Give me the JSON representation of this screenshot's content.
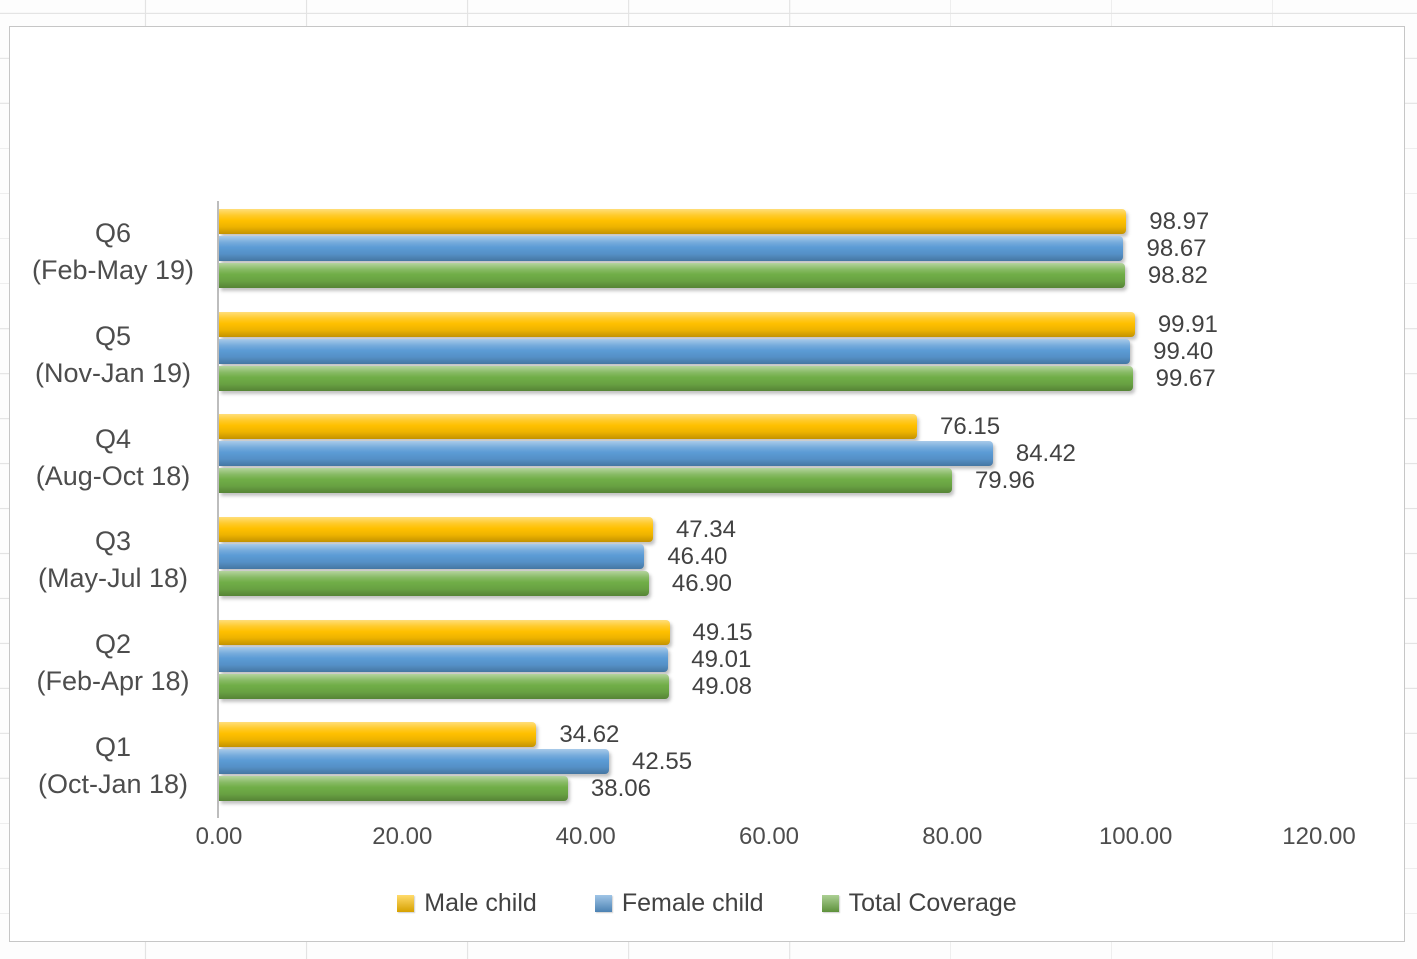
{
  "chart_data": {
    "type": "bar",
    "orientation": "horizontal",
    "title": "",
    "xlabel": "",
    "ylabel": "",
    "xlim": [
      0,
      120
    ],
    "x_ticks": [
      "0.00",
      "20.00",
      "40.00",
      "60.00",
      "80.00",
      "100.00",
      "120.00"
    ],
    "grid": false,
    "legend_position": "bottom",
    "categories": [
      [
        "Q6",
        "(Feb-May 19)"
      ],
      [
        "Q5",
        "(Nov-Jan 19)"
      ],
      [
        "Q4",
        "(Aug-Oct 18)"
      ],
      [
        "Q3",
        "(May-Jul 18)"
      ],
      [
        "Q2",
        "(Feb-Apr 18)"
      ],
      [
        "Q1",
        "(Oct-Jan 18)"
      ]
    ],
    "series": [
      {
        "name": "Male child",
        "color": "#FFC000",
        "values": [
          98.97,
          99.91,
          76.15,
          47.34,
          49.15,
          34.62
        ],
        "labels": [
          "98.97",
          "99.91",
          "76.15",
          "47.34",
          "49.15",
          "34.62"
        ]
      },
      {
        "name": "Female child",
        "color": "#5B9BD5",
        "values": [
          98.67,
          99.4,
          84.42,
          46.4,
          49.01,
          42.55
        ],
        "labels": [
          "98.67",
          "99.40",
          "84.42",
          "46.40",
          "49.01",
          "42.55"
        ]
      },
      {
        "name": "Total Coverage",
        "color": "#70AD47",
        "values": [
          98.82,
          99.67,
          79.96,
          46.9,
          49.08,
          38.06
        ],
        "labels": [
          "98.82",
          "99.67",
          "79.96",
          "46.90",
          "49.08",
          "38.06"
        ]
      }
    ]
  }
}
